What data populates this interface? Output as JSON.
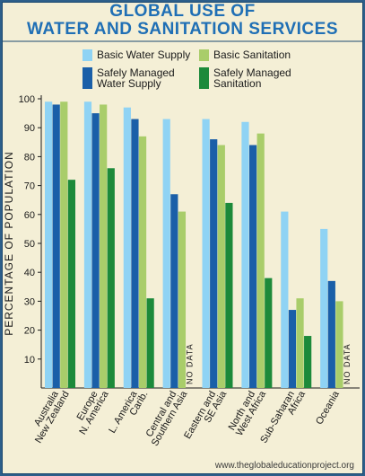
{
  "title": {
    "line1": "GLOBAL USE OF",
    "line2": "WATER AND SANITATION SERVICES"
  },
  "footer": "www.theglobaleducationproject.org",
  "colors": {
    "basic_water": "#8fd3f4",
    "safely_water": "#1a5fa8",
    "basic_sanitation": "#a9cd6a",
    "safely_sanitation": "#1c8a3a",
    "background": "#f4efd6",
    "title": "#1f6fb5"
  },
  "chart_data": {
    "type": "bar",
    "ylabel": "PERCENTAGE OF POPULATION",
    "ylim": [
      0,
      100
    ],
    "yticks": [
      10,
      20,
      30,
      40,
      50,
      60,
      70,
      80,
      90,
      100
    ],
    "legend_placement": "top",
    "grid": false,
    "categories": [
      [
        "Australia",
        "New Zealand"
      ],
      [
        "Europe",
        "N. America"
      ],
      [
        "L. America",
        "Carib."
      ],
      [
        "Central and",
        "Southern Asia"
      ],
      [
        "Eastern and",
        "SE Asia"
      ],
      [
        "North and",
        "West Africa"
      ],
      [
        "Sub-Saharan",
        "Africa"
      ],
      [
        "Oceania"
      ]
    ],
    "series": [
      {
        "name": "Basic Water Supply",
        "color_key": "basic_water",
        "values": [
          99,
          99,
          97,
          93,
          93,
          92,
          61,
          55
        ]
      },
      {
        "name": "Safely Managed Water Supply",
        "legend_lines": [
          "Safely Managed",
          "Water Supply"
        ],
        "color_key": "safely_water",
        "values": [
          98,
          95,
          93,
          67,
          86,
          84,
          27,
          37
        ]
      },
      {
        "name": "Basic Sanitation",
        "color_key": "basic_sanitation",
        "values": [
          99,
          98,
          87,
          61,
          84,
          88,
          31,
          30
        ]
      },
      {
        "name": "Safely Managed Sanitation",
        "legend_lines": [
          "Safely Managed",
          "Sanitation"
        ],
        "color_key": "safely_sanitation",
        "values": [
          72,
          76,
          31,
          null,
          64,
          38,
          18,
          null
        ]
      }
    ],
    "annotations": {
      "no_data": "NO DATA"
    }
  }
}
